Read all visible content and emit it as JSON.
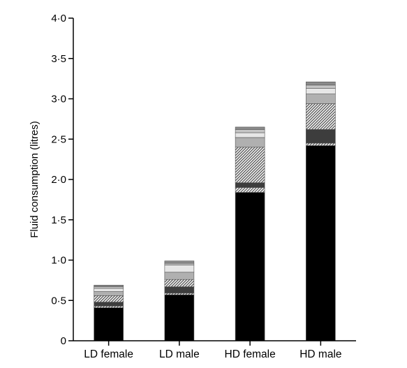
{
  "chart_data": {
    "type": "bar",
    "stacked": true,
    "title": "",
    "xlabel": "",
    "ylabel": "Fluid consumption (litres)",
    "ylim": [
      0,
      4.0
    ],
    "yticks": [
      0,
      0.5,
      1.0,
      1.5,
      2.0,
      2.5,
      3.0,
      3.5,
      4.0
    ],
    "ytick_labels": [
      "0",
      "0·5",
      "1·0",
      "1·5",
      "2·0",
      "2·5",
      "3·0",
      "3·5",
      "4·0"
    ],
    "grid": false,
    "legend": "none",
    "categories": [
      "LD female",
      "LD male",
      "HD female",
      "HD male"
    ],
    "series": [
      {
        "fill": "#000000",
        "values": [
          0.41,
          0.57,
          1.84,
          2.42
        ]
      },
      {
        "fill": "#b8b8b8",
        "pattern": "hatch",
        "values": [
          0.02,
          0.02,
          0.06,
          0.03
        ]
      },
      {
        "fill": "#3d3d3d",
        "values": [
          0.05,
          0.08,
          0.06,
          0.17
        ]
      },
      {
        "fill": "#9a9a9a",
        "pattern": "hatch",
        "values": [
          0.08,
          0.09,
          0.44,
          0.32
        ]
      },
      {
        "fill": "#b0b0b0",
        "values": [
          0.05,
          0.09,
          0.12,
          0.12
        ]
      },
      {
        "fill": "#e6e6e6",
        "values": [
          0.04,
          0.09,
          0.06,
          0.07
        ]
      },
      {
        "fill": "#c6c6c6",
        "values": [
          0.02,
          0.02,
          0.04,
          0.04
        ]
      },
      {
        "fill": "#8a8a8a",
        "values": [
          0.02,
          0.03,
          0.03,
          0.04
        ]
      }
    ]
  }
}
